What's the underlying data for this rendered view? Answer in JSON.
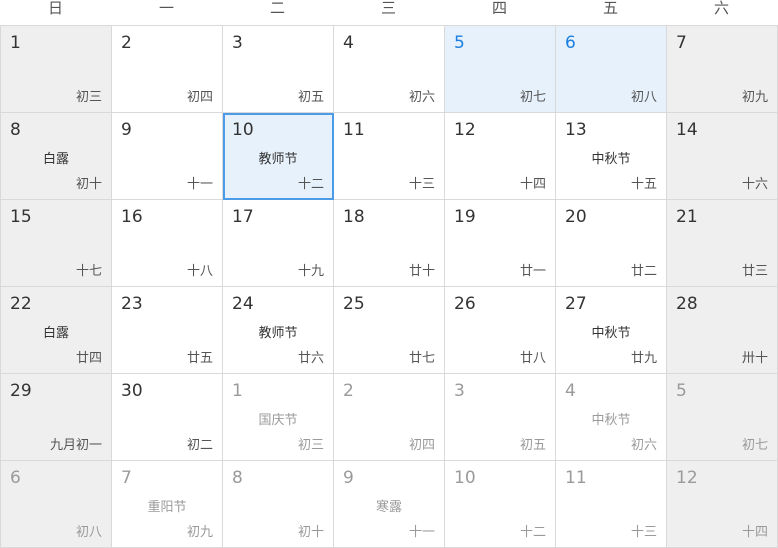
{
  "weekdays": [
    "日",
    "一",
    "二",
    "三",
    "四",
    "五",
    "六"
  ],
  "days": [
    {
      "day": "1",
      "lunar": "初三",
      "festival": "",
      "weekend": true,
      "holiday": false,
      "today": false,
      "other": false
    },
    {
      "day": "2",
      "lunar": "初四",
      "festival": "",
      "weekend": false,
      "holiday": false,
      "today": false,
      "other": false
    },
    {
      "day": "3",
      "lunar": "初五",
      "festival": "",
      "weekend": false,
      "holiday": false,
      "today": false,
      "other": false
    },
    {
      "day": "4",
      "lunar": "初六",
      "festival": "",
      "weekend": false,
      "holiday": false,
      "today": false,
      "other": false
    },
    {
      "day": "5",
      "lunar": "初七",
      "festival": "",
      "weekend": false,
      "holiday": true,
      "today": false,
      "other": false
    },
    {
      "day": "6",
      "lunar": "初八",
      "festival": "",
      "weekend": false,
      "holiday": true,
      "today": false,
      "other": false
    },
    {
      "day": "7",
      "lunar": "初九",
      "festival": "",
      "weekend": true,
      "holiday": false,
      "today": false,
      "other": false
    },
    {
      "day": "8",
      "lunar": "初十",
      "festival": "白露",
      "weekend": true,
      "holiday": false,
      "today": false,
      "other": false
    },
    {
      "day": "9",
      "lunar": "十一",
      "festival": "",
      "weekend": false,
      "holiday": false,
      "today": false,
      "other": false
    },
    {
      "day": "10",
      "lunar": "十二",
      "festival": "教师节",
      "weekend": false,
      "holiday": false,
      "today": true,
      "other": false
    },
    {
      "day": "11",
      "lunar": "十三",
      "festival": "",
      "weekend": false,
      "holiday": false,
      "today": false,
      "other": false
    },
    {
      "day": "12",
      "lunar": "十四",
      "festival": "",
      "weekend": false,
      "holiday": false,
      "today": false,
      "other": false
    },
    {
      "day": "13",
      "lunar": "十五",
      "festival": "中秋节",
      "weekend": false,
      "holiday": false,
      "today": false,
      "other": false
    },
    {
      "day": "14",
      "lunar": "十六",
      "festival": "",
      "weekend": true,
      "holiday": false,
      "today": false,
      "other": false
    },
    {
      "day": "15",
      "lunar": "十七",
      "festival": "",
      "weekend": true,
      "holiday": false,
      "today": false,
      "other": false
    },
    {
      "day": "16",
      "lunar": "十八",
      "festival": "",
      "weekend": false,
      "holiday": false,
      "today": false,
      "other": false
    },
    {
      "day": "17",
      "lunar": "十九",
      "festival": "",
      "weekend": false,
      "holiday": false,
      "today": false,
      "other": false
    },
    {
      "day": "18",
      "lunar": "廿十",
      "festival": "",
      "weekend": false,
      "holiday": false,
      "today": false,
      "other": false
    },
    {
      "day": "19",
      "lunar": "廿一",
      "festival": "",
      "weekend": false,
      "holiday": false,
      "today": false,
      "other": false
    },
    {
      "day": "20",
      "lunar": "廿二",
      "festival": "",
      "weekend": false,
      "holiday": false,
      "today": false,
      "other": false
    },
    {
      "day": "21",
      "lunar": "廿三",
      "festival": "",
      "weekend": true,
      "holiday": false,
      "today": false,
      "other": false
    },
    {
      "day": "22",
      "lunar": "廿四",
      "festival": "白露",
      "weekend": true,
      "holiday": false,
      "today": false,
      "other": false
    },
    {
      "day": "23",
      "lunar": "廿五",
      "festival": "",
      "weekend": false,
      "holiday": false,
      "today": false,
      "other": false
    },
    {
      "day": "24",
      "lunar": "廿六",
      "festival": "教师节",
      "weekend": false,
      "holiday": false,
      "today": false,
      "other": false
    },
    {
      "day": "25",
      "lunar": "廿七",
      "festival": "",
      "weekend": false,
      "holiday": false,
      "today": false,
      "other": false
    },
    {
      "day": "26",
      "lunar": "廿八",
      "festival": "",
      "weekend": false,
      "holiday": false,
      "today": false,
      "other": false
    },
    {
      "day": "27",
      "lunar": "廿九",
      "festival": "中秋节",
      "weekend": false,
      "holiday": false,
      "today": false,
      "other": false
    },
    {
      "day": "28",
      "lunar": "卅十",
      "festival": "",
      "weekend": true,
      "holiday": false,
      "today": false,
      "other": false
    },
    {
      "day": "29",
      "lunar": "九月初一",
      "festival": "",
      "weekend": true,
      "holiday": false,
      "today": false,
      "other": false
    },
    {
      "day": "30",
      "lunar": "初二",
      "festival": "",
      "weekend": false,
      "holiday": false,
      "today": false,
      "other": false
    },
    {
      "day": "1",
      "lunar": "初三",
      "festival": "国庆节",
      "weekend": false,
      "holiday": false,
      "today": false,
      "other": true
    },
    {
      "day": "2",
      "lunar": "初四",
      "festival": "",
      "weekend": false,
      "holiday": false,
      "today": false,
      "other": true
    },
    {
      "day": "3",
      "lunar": "初五",
      "festival": "",
      "weekend": false,
      "holiday": false,
      "today": false,
      "other": true
    },
    {
      "day": "4",
      "lunar": "初六",
      "festival": "中秋节",
      "weekend": false,
      "holiday": false,
      "today": false,
      "other": true
    },
    {
      "day": "5",
      "lunar": "初七",
      "festival": "",
      "weekend": true,
      "holiday": false,
      "today": false,
      "other": true
    },
    {
      "day": "6",
      "lunar": "初八",
      "festival": "",
      "weekend": true,
      "holiday": false,
      "today": false,
      "other": true
    },
    {
      "day": "7",
      "lunar": "初九",
      "festival": "重阳节",
      "weekend": false,
      "holiday": false,
      "today": false,
      "other": true
    },
    {
      "day": "8",
      "lunar": "初十",
      "festival": "",
      "weekend": false,
      "holiday": false,
      "today": false,
      "other": true
    },
    {
      "day": "9",
      "lunar": "十一",
      "festival": "寒露",
      "weekend": false,
      "holiday": false,
      "today": false,
      "other": true
    },
    {
      "day": "10",
      "lunar": "十二",
      "festival": "",
      "weekend": false,
      "holiday": false,
      "today": false,
      "other": true
    },
    {
      "day": "11",
      "lunar": "十三",
      "festival": "",
      "weekend": false,
      "holiday": false,
      "today": false,
      "other": true
    },
    {
      "day": "12",
      "lunar": "十四",
      "festival": "",
      "weekend": true,
      "holiday": false,
      "today": false,
      "other": true
    }
  ]
}
